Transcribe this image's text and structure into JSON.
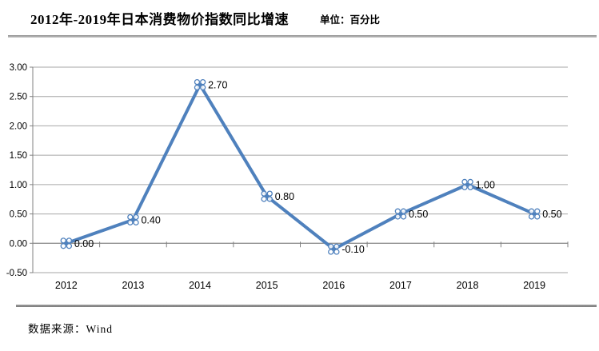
{
  "header": {
    "title": "2012年-2019年日本消费物价指数同比增速",
    "unit": "单位：百分比"
  },
  "footer": {
    "source": "数据来源：Wind"
  },
  "chart_data": {
    "type": "line",
    "title": "2012年-2019年日本消费物价指数同比增速",
    "unit": "百分比",
    "categories": [
      "2012",
      "2013",
      "2014",
      "2015",
      "2016",
      "2017",
      "2018",
      "2019"
    ],
    "values": [
      0.0,
      0.4,
      2.7,
      0.8,
      -0.1,
      0.5,
      1.0,
      0.5
    ],
    "data_labels": [
      "0.00",
      "0.40",
      "2.70",
      "0.80",
      "-0.10",
      "0.50",
      "1.00",
      "0.50"
    ],
    "ylim": [
      -0.5,
      3.0
    ],
    "ytick_step": 0.5,
    "ytick_labels": [
      "3.00",
      "2.50",
      "2.00",
      "1.50",
      "1.00",
      "0.50",
      "0.00",
      "-0.50"
    ],
    "grid": true,
    "legend": "none",
    "marker_style": "x-circle-cluster",
    "source": "Wind"
  },
  "colors": {
    "line": "#4F81BD",
    "marker_stroke": "#4F81BD",
    "marker_fill": "#FFFFFF",
    "gridline": "#A6A6A6",
    "axis": "#808080",
    "text": "#000000"
  }
}
